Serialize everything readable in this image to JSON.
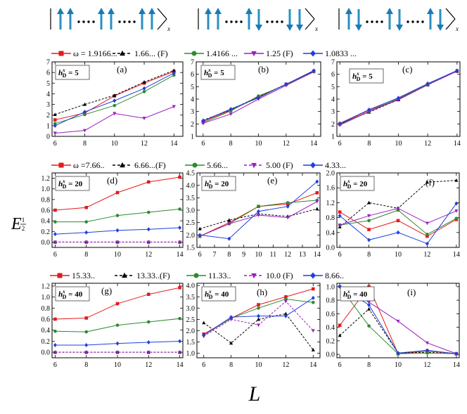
{
  "figure": {
    "xlabel": "L",
    "ylabel_main": "E",
    "ylabel_sub": "1/2",
    "ylabel_exponent": "1",
    "ylabel_exponent_den": "2"
  },
  "diagrams": [
    {
      "name": "diagram-1",
      "arrows": [
        "up",
        "up",
        "up",
        "up",
        "up",
        "up"
      ],
      "axis": "x"
    },
    {
      "name": "diagram-2",
      "arrows": [
        "up",
        "up",
        "up",
        "down",
        "down",
        "down"
      ],
      "axis": "x"
    },
    {
      "name": "diagram-3",
      "arrows": [
        "up",
        "down",
        "up",
        "down",
        "up",
        "down"
      ],
      "axis": "x"
    }
  ],
  "legends": [
    [
      {
        "label": "ω = 1.9166...",
        "color": "#e41a1c",
        "marker": "square",
        "dash": false
      },
      {
        "label": "1.66... (F)",
        "color": "#000000",
        "marker": "triangle",
        "dash": true
      },
      {
        "label": "1.4166 ...",
        "color": "#2e8b2e",
        "marker": "circle",
        "dash": false
      },
      {
        "label": "1.25 (F)",
        "color": "#9b1fc0",
        "marker": "tri-down",
        "dash": false
      },
      {
        "label": "1.0833 ...",
        "color": "#1f3fe0",
        "marker": "diamond",
        "dash": false
      }
    ],
    [
      {
        "label": "ω =7.66..",
        "color": "#e41a1c",
        "marker": "square",
        "dash": false
      },
      {
        "label": "6.66...(F)",
        "color": "#000000",
        "marker": "triangle",
        "dash": true
      },
      {
        "label": "5.66...",
        "color": "#2e8b2e",
        "marker": "circle",
        "dash": false
      },
      {
        "label": "5.00 (F)",
        "color": "#9b1fc0",
        "marker": "tri-down",
        "dash": true
      },
      {
        "label": "4.33...",
        "color": "#1f3fe0",
        "marker": "diamond",
        "dash": false
      }
    ],
    [
      {
        "label": "15.33..",
        "color": "#e41a1c",
        "marker": "square",
        "dash": false
      },
      {
        "label": "13.33..(F)",
        "color": "#000000",
        "marker": "triangle",
        "dash": true
      },
      {
        "label": "11.33..",
        "color": "#2e8b2e",
        "marker": "circle",
        "dash": false
      },
      {
        "label": "10.0 (F)",
        "color": "#9b1fc0",
        "marker": "tri-down",
        "dash": true
      },
      {
        "label": "8.66..",
        "color": "#1f3fe0",
        "marker": "diamond",
        "dash": false
      }
    ]
  ],
  "chart_data": [
    {
      "id": "a",
      "panel_label": "(a)",
      "hd_value": "5",
      "type": "line",
      "x": [
        6,
        8,
        10,
        12,
        14
      ],
      "xticks": [
        "6",
        "8",
        "10",
        "12",
        "14"
      ],
      "xlim": [
        5.8,
        14.6
      ],
      "ylim": [
        0,
        7
      ],
      "yticks": [
        "0",
        "1",
        "2",
        "3",
        "4",
        "5",
        "6",
        "7"
      ],
      "ytick_values": [
        0,
        1,
        2,
        3,
        4,
        5,
        6,
        7
      ],
      "series": [
        {
          "name": "ω = 1.9166...",
          "values": [
            1.55,
            2.2,
            3.8,
            5.0,
            6.1
          ]
        },
        {
          "name": "1.66... (F)",
          "values": [
            2.05,
            3.0,
            3.85,
            5.1,
            6.2
          ]
        },
        {
          "name": "1.4166 ...",
          "values": [
            1.2,
            2.05,
            2.9,
            4.2,
            5.75
          ]
        },
        {
          "name": "1.25 (F)",
          "values": [
            0.3,
            0.55,
            2.15,
            1.7,
            2.8
          ]
        },
        {
          "name": "1.0833 ...",
          "values": [
            1.0,
            2.3,
            3.35,
            4.5,
            5.95
          ]
        }
      ]
    },
    {
      "id": "b",
      "panel_label": "(b)",
      "hd_value": "5",
      "type": "line",
      "x": [
        6,
        8,
        10,
        12,
        14
      ],
      "xticks": [
        "6",
        "8",
        "10",
        "12",
        "14"
      ],
      "xlim": [
        5.5,
        14.5
      ],
      "ylim": [
        1,
        7
      ],
      "yticks": [
        "1",
        "2",
        "3",
        "4",
        "5",
        "6",
        "7"
      ],
      "ytick_values": [
        1,
        2,
        3,
        4,
        5,
        6,
        7
      ],
      "series": [
        {
          "name": "ω = 1.9166...",
          "values": [
            2.2,
            3.1,
            4.15,
            5.2,
            6.25
          ]
        },
        {
          "name": "1.66... (F)",
          "values": [
            2.3,
            3.15,
            4.2,
            5.2,
            6.25
          ]
        },
        {
          "name": "1.4166 ...",
          "values": [
            2.1,
            3.05,
            4.25,
            5.15,
            6.2
          ]
        },
        {
          "name": "1.25 (F)",
          "values": [
            2.05,
            2.8,
            4.0,
            5.1,
            6.2
          ]
        },
        {
          "name": "1.0833 ...",
          "values": [
            2.25,
            3.2,
            4.1,
            5.2,
            6.3
          ]
        }
      ]
    },
    {
      "id": "c",
      "panel_label": "(c)",
      "hd_value": "5",
      "type": "line",
      "x": [
        6,
        8,
        10,
        12,
        14
      ],
      "xticks": [
        "6",
        "8",
        "10",
        "12",
        "14"
      ],
      "xlim": [
        5.8,
        14.2
      ],
      "ylim": [
        1,
        7
      ],
      "yticks": [
        "1",
        "2",
        "3",
        "4",
        "5",
        "6",
        "7"
      ],
      "ytick_values": [
        1,
        2,
        3,
        4,
        5,
        6,
        7
      ],
      "series": [
        {
          "name": "ω = 1.9166...",
          "values": [
            2.0,
            3.1,
            4.0,
            5.2,
            6.25
          ]
        },
        {
          "name": "1.66... (F)",
          "values": [
            2.0,
            2.95,
            3.95,
            5.15,
            6.25
          ]
        },
        {
          "name": "1.4166 ...",
          "values": [
            1.95,
            3.0,
            4.05,
            5.2,
            6.3
          ]
        },
        {
          "name": "1.25 (F)",
          "values": [
            1.9,
            3.0,
            3.95,
            5.15,
            6.25
          ]
        },
        {
          "name": "1.0833 ...",
          "values": [
            2.05,
            3.15,
            4.1,
            5.25,
            6.3
          ]
        }
      ]
    },
    {
      "id": "d",
      "panel_label": "(d)",
      "hd_value": "20",
      "type": "line",
      "x": [
        6,
        8,
        10,
        12,
        14
      ],
      "xticks": [
        "6",
        "8",
        "10",
        "12",
        "14"
      ],
      "xlim": [
        5.8,
        14.2
      ],
      "ylim": [
        -0.1,
        1.3
      ],
      "yticks": [
        "0.0",
        "0.2",
        "0.4",
        "0.6",
        "0.8",
        "1.0",
        "1.2"
      ],
      "ytick_values": [
        0,
        0.2,
        0.4,
        0.6,
        0.8,
        1.0,
        1.2
      ],
      "series": [
        {
          "name": "ω =7.66..",
          "values": [
            0.6,
            0.65,
            0.93,
            1.13,
            1.22
          ]
        },
        {
          "name": "6.66...(F)",
          "values": [
            0,
            0,
            0,
            0,
            0
          ]
        },
        {
          "name": "5.66...",
          "values": [
            0.38,
            0.38,
            0.5,
            0.56,
            0.62
          ]
        },
        {
          "name": "5.00 (F)",
          "values": [
            0,
            0,
            0,
            0,
            0
          ]
        },
        {
          "name": "4.33...",
          "values": [
            0.15,
            0.18,
            0.22,
            0.24,
            0.27
          ]
        }
      ]
    },
    {
      "id": "e",
      "panel_label": "(e)",
      "hd_value": "20",
      "type": "line",
      "x": [
        6,
        8,
        9,
        10,
        11,
        12,
        13,
        14
      ],
      "xticks": [
        "6",
        "7",
        "8",
        "9",
        "10",
        "11",
        "12",
        "13",
        "14"
      ],
      "xtick_values": [
        6,
        7,
        8,
        9,
        10,
        11,
        12,
        13,
        14
      ],
      "xlim": [
        5.8,
        14.2
      ],
      "ylim": [
        1.5,
        4.5
      ],
      "yticks": [
        "1.5",
        "2.0",
        "2.5",
        "3.0",
        "3.5",
        "4.0",
        "4.5"
      ],
      "ytick_values": [
        1.5,
        2.0,
        2.5,
        3.0,
        3.5,
        4.0,
        4.5
      ],
      "series": [
        {
          "name": "ω =7.66..",
          "x": [
            6,
            8,
            10,
            12,
            14
          ],
          "values": [
            1.95,
            2.5,
            3.15,
            3.25,
            3.7
          ]
        },
        {
          "name": "6.66...(F)",
          "x": [
            6,
            8,
            10,
            12,
            14
          ],
          "values": [
            2.25,
            2.6,
            2.85,
            2.75,
            3.05
          ]
        },
        {
          "name": "5.66...",
          "x": [
            6,
            8,
            10,
            12,
            14
          ],
          "values": [
            1.95,
            2.45,
            3.15,
            3.3,
            3.4
          ]
        },
        {
          "name": "5.00 (F)",
          "x": [
            6,
            8,
            10,
            12,
            14
          ],
          "values": [
            1.95,
            2.45,
            2.8,
            2.7,
            3.35
          ]
        },
        {
          "name": "4.33...",
          "x": [
            6,
            8,
            10,
            12,
            14
          ],
          "values": [
            2.0,
            1.85,
            2.95,
            3.15,
            4.15
          ]
        }
      ]
    },
    {
      "id": "f",
      "panel_label": "(f)",
      "hd_value": "20",
      "type": "line",
      "x": [
        6,
        8,
        10,
        12,
        14
      ],
      "xticks": [
        "6",
        "8",
        "10",
        "12",
        "14"
      ],
      "xlim": [
        5.8,
        14.2
      ],
      "ylim": [
        0,
        2.0
      ],
      "yticks": [
        "0.0",
        "0.4",
        "0.8",
        "1.2",
        "1.6",
        "2.0"
      ],
      "ytick_values": [
        0,
        0.4,
        0.8,
        1.2,
        1.6,
        2.0
      ],
      "series": [
        {
          "name": "ω =7.66..",
          "values": [
            0.95,
            0.48,
            0.72,
            0.3,
            0.75
          ]
        },
        {
          "name": "6.66...(F)",
          "values": [
            0.55,
            1.2,
            1.05,
            1.75,
            1.8
          ]
        },
        {
          "name": "5.66...",
          "values": [
            0.6,
            0.72,
            1.0,
            0.35,
            0.78
          ]
        },
        {
          "name": "5.00 (F)",
          "values": [
            0.6,
            0.85,
            1.05,
            0.65,
            0.98
          ]
        },
        {
          "name": "4.33...",
          "values": [
            0.85,
            0.2,
            0.4,
            0.1,
            1.18
          ]
        }
      ]
    },
    {
      "id": "g",
      "panel_label": "(g)",
      "hd_value": "40",
      "type": "line",
      "x": [
        6,
        8,
        10,
        12,
        14
      ],
      "xticks": [
        "6",
        "8",
        "10",
        "12",
        "14"
      ],
      "xlim": [
        5.8,
        14.2
      ],
      "ylim": [
        -0.1,
        1.25
      ],
      "yticks": [
        "0.0",
        "0.2",
        "0.4",
        "0.6",
        "0.8",
        "1.0",
        "1.2"
      ],
      "ytick_values": [
        0,
        0.2,
        0.4,
        0.6,
        0.8,
        1.0,
        1.2
      ],
      "series": [
        {
          "name": "15.33..",
          "values": [
            0.6,
            0.62,
            0.88,
            1.05,
            1.17
          ]
        },
        {
          "name": "13.33..(F)",
          "values": [
            0,
            0,
            0,
            0,
            0
          ]
        },
        {
          "name": "11.33..",
          "values": [
            0.38,
            0.37,
            0.49,
            0.55,
            0.61
          ]
        },
        {
          "name": "10.0 (F)",
          "values": [
            0,
            0,
            0,
            0,
            0
          ]
        },
        {
          "name": "8.66..",
          "values": [
            0.13,
            0.13,
            0.16,
            0.18,
            0.2
          ]
        }
      ]
    },
    {
      "id": "h",
      "panel_label": "(h)",
      "hd_value": "40",
      "type": "line",
      "x": [
        6,
        8,
        10,
        12,
        14
      ],
      "xticks": [
        "6",
        "8",
        "10",
        "12",
        "14"
      ],
      "xlim": [
        5.5,
        14.5
      ],
      "ylim": [
        0.8,
        4.1
      ],
      "yticks": [
        "1.0",
        "1.5",
        "2.0",
        "2.5",
        "3.0",
        "3.5",
        "4.0"
      ],
      "ytick_values": [
        1.0,
        1.5,
        2.0,
        2.5,
        3.0,
        3.5,
        4.0
      ],
      "series": [
        {
          "name": "15.33..",
          "values": [
            1.85,
            2.55,
            3.15,
            3.5,
            3.85
          ]
        },
        {
          "name": "13.33..(F)",
          "values": [
            2.35,
            1.45,
            2.5,
            2.75,
            1.15
          ]
        },
        {
          "name": "11.33..",
          "values": [
            1.8,
            2.55,
            3.0,
            3.4,
            3.25
          ]
        },
        {
          "name": "10.0 (F)",
          "values": [
            1.75,
            2.5,
            2.25,
            3.3,
            2.0
          ]
        },
        {
          "name": "8.66..",
          "values": [
            1.8,
            2.6,
            2.65,
            2.65,
            3.45
          ]
        }
      ]
    },
    {
      "id": "i",
      "panel_label": "(i)",
      "hd_value": "40",
      "type": "line",
      "x": [
        6,
        8,
        10,
        12,
        14
      ],
      "xticks": [
        "6",
        "8",
        "10",
        "12",
        "14"
      ],
      "xlim": [
        5.8,
        14.2
      ],
      "ylim": [
        -0.05,
        1.05
      ],
      "yticks": [
        "0.0",
        "0.2",
        "0.4",
        "0.6",
        "0.8",
        "1.0"
      ],
      "ytick_values": [
        0,
        0.2,
        0.4,
        0.6,
        0.8,
        1.0
      ],
      "series": [
        {
          "name": "15.33..",
          "values": [
            0.43,
            1.0,
            0.01,
            0.05,
            0.01
          ]
        },
        {
          "name": "13.33..(F)",
          "values": [
            0.28,
            0.67,
            0.02,
            0.03,
            0.01
          ]
        },
        {
          "name": "11.33..",
          "values": [
            1.0,
            0.42,
            0.01,
            0.02,
            0.01
          ]
        },
        {
          "name": "10.0 (F)",
          "values": [
            1.0,
            0.77,
            0.49,
            0.17,
            0.01
          ]
        },
        {
          "name": "8.66..",
          "values": [
            1.0,
            0.73,
            0.02,
            0.06,
            0.01
          ]
        }
      ]
    }
  ]
}
